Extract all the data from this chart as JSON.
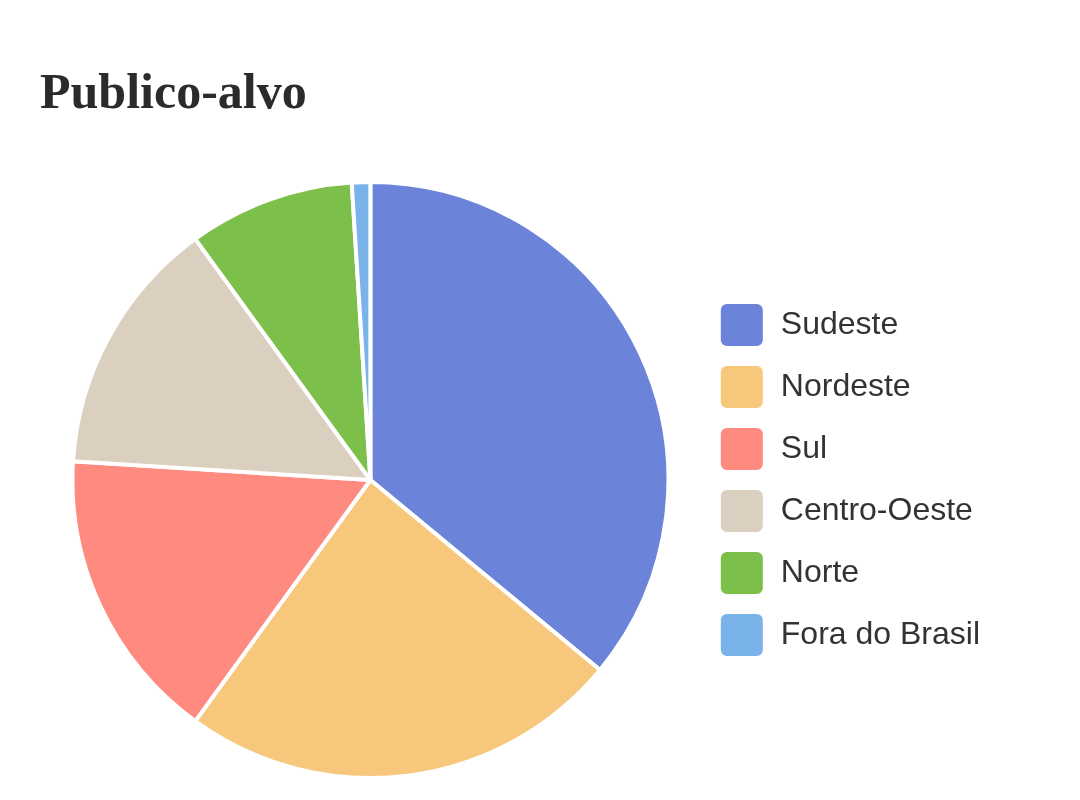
{
  "chart_data": {
    "type": "pie",
    "title": "Publico-alvo",
    "categories": [
      "Sudeste",
      "Nordeste",
      "Sul",
      "Centro-Oeste",
      "Norte",
      "Fora do Brasil"
    ],
    "values": [
      36,
      24,
      16,
      14,
      9,
      1
    ],
    "colors": [
      "#6b84d9",
      "#f7c77c",
      "#ff8a80",
      "#dbd0bf",
      "#7cbf4a",
      "#7ab3ea"
    ],
    "legend": "right"
  }
}
